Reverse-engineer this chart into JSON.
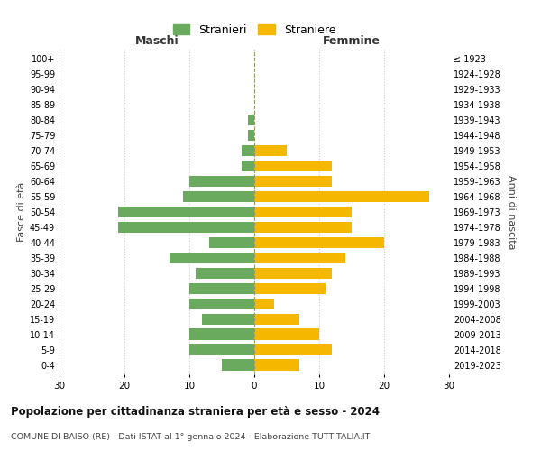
{
  "age_groups": [
    "0-4",
    "5-9",
    "10-14",
    "15-19",
    "20-24",
    "25-29",
    "30-34",
    "35-39",
    "40-44",
    "45-49",
    "50-54",
    "55-59",
    "60-64",
    "65-69",
    "70-74",
    "75-79",
    "80-84",
    "85-89",
    "90-94",
    "95-99",
    "100+"
  ],
  "birth_years": [
    "2019-2023",
    "2014-2018",
    "2009-2013",
    "2004-2008",
    "1999-2003",
    "1994-1998",
    "1989-1993",
    "1984-1988",
    "1979-1983",
    "1974-1978",
    "1969-1973",
    "1964-1968",
    "1959-1963",
    "1954-1958",
    "1949-1953",
    "1944-1948",
    "1939-1943",
    "1934-1938",
    "1929-1933",
    "1924-1928",
    "≤ 1923"
  ],
  "maschi": [
    5,
    10,
    10,
    8,
    10,
    10,
    9,
    13,
    7,
    21,
    21,
    11,
    10,
    2,
    2,
    1,
    1,
    0,
    0,
    0,
    0
  ],
  "femmine": [
    7,
    12,
    10,
    7,
    3,
    11,
    12,
    14,
    20,
    15,
    15,
    27,
    12,
    12,
    5,
    0,
    0,
    0,
    0,
    0,
    0
  ],
  "maschi_color": "#6aaa5e",
  "femmine_color": "#f5b700",
  "title": "Popolazione per cittadinanza straniera per età e sesso - 2024",
  "subtitle": "COMUNE DI BAISO (RE) - Dati ISTAT al 1° gennaio 2024 - Elaborazione TUTTITALIA.IT",
  "legend_maschi": "Stranieri",
  "legend_femmine": "Straniere",
  "xlabel_maschi": "Maschi",
  "xlabel_femmine": "Femmine",
  "ylabel": "Fasce di età",
  "ylabel_right": "Anni di nascita",
  "xlim": 30,
  "background_color": "#ffffff",
  "grid_color": "#cccccc"
}
